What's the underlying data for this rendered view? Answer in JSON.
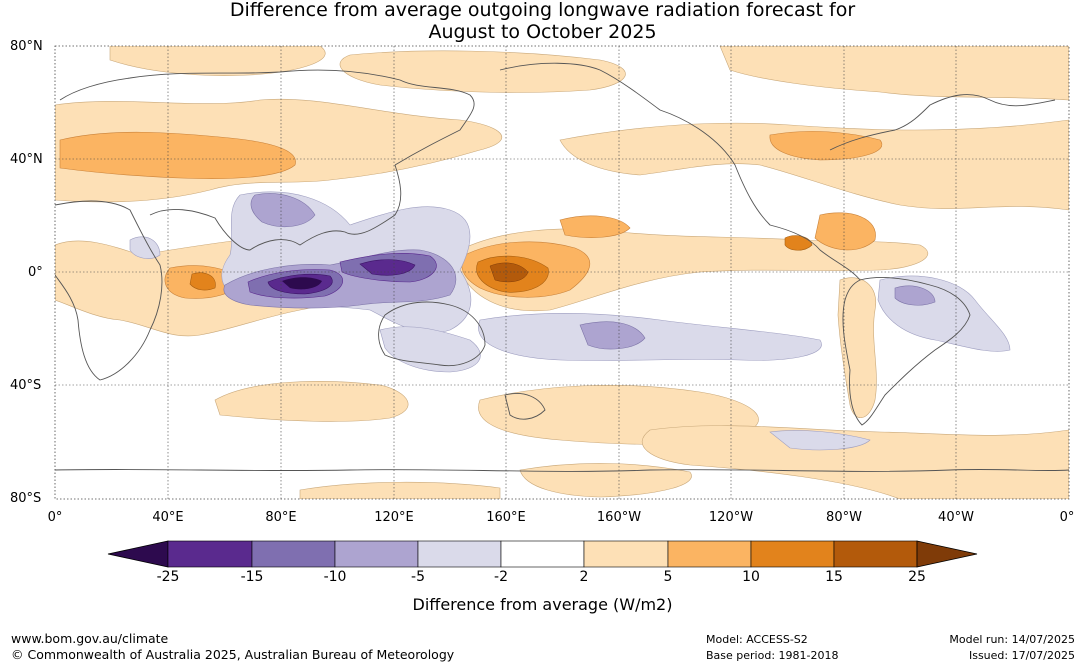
{
  "title_line1": "Difference from average outgoing longwave radiation forecast for",
  "title_line2": "August to October 2025",
  "lat_labels": [
    "80°N",
    "40°N",
    "0°",
    "40°S",
    "80°S"
  ],
  "lon_labels": [
    "0°",
    "40°E",
    "80°E",
    "120°E",
    "160°E",
    "160°W",
    "120°W",
    "80°W",
    "40°W",
    "0°"
  ],
  "colorbar": {
    "title": "Difference from average (W/m2)",
    "ticks": [
      "-25",
      "-15",
      "-10",
      "-5",
      "-2",
      "2",
      "5",
      "10",
      "15",
      "25"
    ],
    "colors": [
      "#2d0a4e",
      "#5a2a8e",
      "#7f6fb0",
      "#ada4d0",
      "#dadaea",
      "#ffffff",
      "#fde0b6",
      "#fbb462",
      "#e2831c",
      "#b35a0b",
      "#7f3b08"
    ]
  },
  "footer": {
    "website": "www.bom.gov.au/climate",
    "copyright": "© Commonwealth of Australia 2025, Australian Bureau of Meteorology",
    "model": "Model: ACCESS-S2",
    "base_period": "Base period: 1981-2018",
    "model_run": "Model run: 14/07/2025",
    "issued": "Issued: 17/07/2025"
  }
}
